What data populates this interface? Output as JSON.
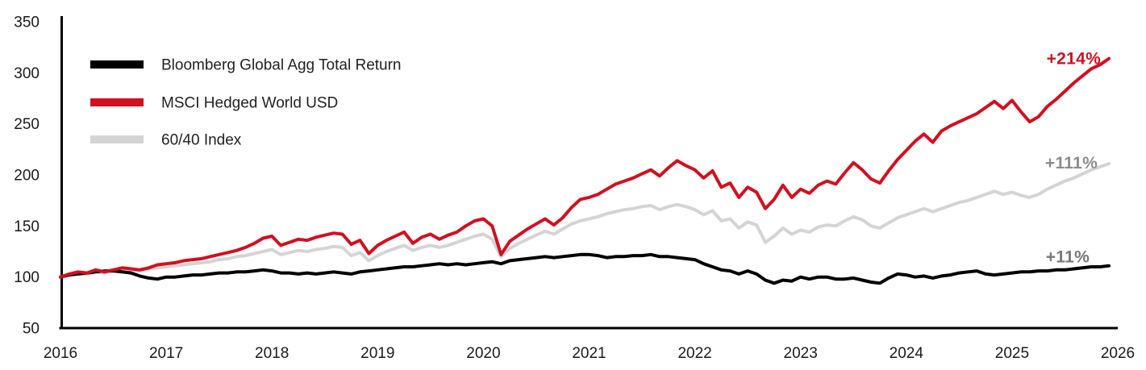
{
  "chart_data": {
    "type": "line",
    "title": "",
    "x_axis": {
      "start_year": 2016,
      "end_year": 2026,
      "tick_labels": [
        "2016",
        "2017",
        "2018",
        "2019",
        "2020",
        "2021",
        "2022",
        "2023",
        "2024",
        "2025",
        "2026"
      ]
    },
    "y_axis": {
      "min": 50,
      "max": 350,
      "tick_step": 50,
      "tick_labels": [
        "50",
        "100",
        "150",
        "200",
        "250",
        "300",
        "350"
      ]
    },
    "points_per_year": 12,
    "grid": false,
    "legend": {
      "position": "top-left-inside",
      "items": [
        "Bloomberg Global Agg Total Return",
        "MSCI Hedged World USD",
        "60/40 Index"
      ]
    },
    "series": [
      {
        "name": "Bloomberg Global Agg Total Return",
        "slug": "bloomberg-global-agg",
        "color": "#000000",
        "end_label": "+11%",
        "end_label_color": "#787878",
        "start_value": 100,
        "end_value": 111,
        "values": [
          100,
          102,
          103,
          104,
          105,
          106,
          106,
          105,
          104,
          101,
          99,
          98,
          100,
          100,
          101,
          102,
          102,
          103,
          104,
          104,
          105,
          105,
          106,
          107,
          106,
          104,
          104,
          103,
          104,
          103,
          104,
          105,
          104,
          103,
          105,
          106,
          107,
          108,
          109,
          110,
          110,
          111,
          112,
          113,
          112,
          113,
          112,
          113,
          114,
          115,
          113,
          116,
          117,
          118,
          119,
          120,
          119,
          120,
          121,
          122,
          122,
          121,
          119,
          120,
          120,
          121,
          121,
          122,
          120,
          120,
          119,
          118,
          117,
          113,
          110,
          107,
          106,
          103,
          106,
          103,
          97,
          94,
          97,
          96,
          100,
          98,
          100,
          100,
          98,
          98,
          99,
          97,
          95,
          94,
          99,
          103,
          102,
          100,
          101,
          99,
          101,
          102,
          104,
          105,
          106,
          103,
          102,
          103,
          104,
          105,
          105,
          106,
          106,
          107,
          107,
          108,
          109,
          110,
          110,
          111
        ]
      },
      {
        "name": "MSCI Hedged World USD",
        "slug": "msci-hedged-world",
        "color": "#d40f1f",
        "end_label": "+214%",
        "end_label_color": "#d40f1f",
        "start_value": 100,
        "end_value": 314,
        "values": [
          100,
          103,
          105,
          104,
          107,
          105,
          107,
          109,
          108,
          107,
          109,
          112,
          113,
          114,
          116,
          117,
          118,
          120,
          122,
          124,
          126,
          129,
          133,
          138,
          140,
          131,
          134,
          137,
          136,
          139,
          141,
          143,
          142,
          132,
          136,
          123,
          131,
          136,
          140,
          144,
          133,
          139,
          142,
          137,
          141,
          144,
          150,
          155,
          157,
          150,
          122,
          135,
          141,
          147,
          152,
          157,
          151,
          158,
          168,
          176,
          178,
          181,
          186,
          191,
          194,
          197,
          201,
          205,
          199,
          207,
          214,
          209,
          205,
          197,
          204,
          188,
          192,
          178,
          188,
          183,
          167,
          176,
          190,
          178,
          186,
          182,
          190,
          194,
          191,
          202,
          212,
          205,
          196,
          192,
          204,
          215,
          224,
          233,
          240,
          232,
          243,
          248,
          252,
          256,
          260,
          266,
          272,
          265,
          273,
          262,
          252,
          257,
          267,
          274,
          282,
          290,
          297,
          304,
          308,
          314
        ]
      },
      {
        "name": "60/40 Index",
        "slug": "60-40-index",
        "color": "#d4d4d4",
        "end_label": "+111%",
        "end_label_color": "#8c8c8c",
        "start_value": 100,
        "end_value": 211,
        "values": [
          100,
          102,
          104,
          103,
          105,
          104,
          106,
          108,
          107,
          106,
          108,
          109,
          110,
          111,
          112,
          113,
          114,
          115,
          117,
          118,
          120,
          121,
          123,
          125,
          127,
          122,
          124,
          126,
          125,
          127,
          128,
          130,
          129,
          121,
          124,
          116,
          121,
          125,
          128,
          131,
          126,
          129,
          131,
          129,
          131,
          134,
          137,
          140,
          142,
          137,
          120,
          128,
          133,
          137,
          141,
          145,
          142,
          147,
          152,
          155,
          157,
          159,
          162,
          164,
          166,
          167,
          169,
          170,
          166,
          169,
          171,
          169,
          166,
          161,
          165,
          155,
          157,
          148,
          154,
          151,
          134,
          140,
          148,
          142,
          146,
          144,
          149,
          151,
          150,
          155,
          159,
          156,
          150,
          148,
          153,
          158,
          161,
          164,
          167,
          164,
          167,
          170,
          173,
          175,
          178,
          181,
          184,
          181,
          183,
          180,
          178,
          181,
          186,
          190,
          194,
          197,
          201,
          205,
          208,
          211
        ]
      }
    ]
  },
  "colors": {
    "axis": "#000000",
    "tick_text": "#1a1a1a",
    "legend_text": "#222222",
    "background": "#ffffff"
  }
}
